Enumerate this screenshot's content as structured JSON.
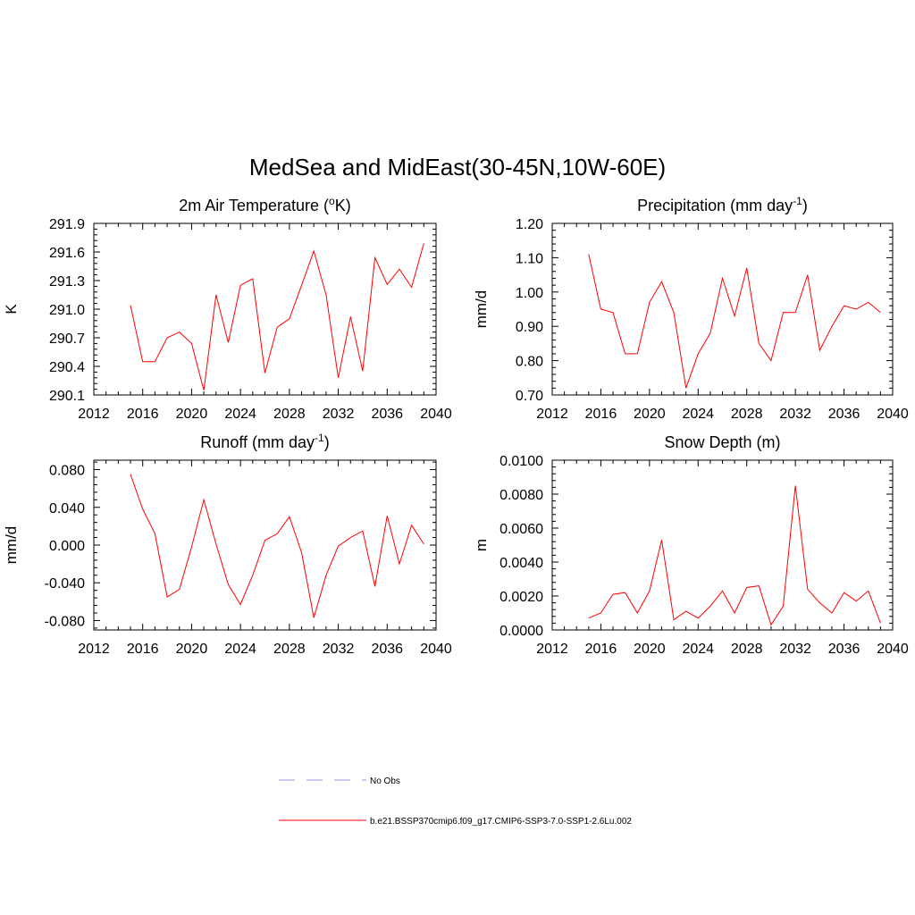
{
  "title": "MedSea and MidEast(30-45N,10W-60E)",
  "series_color": "#ff0000",
  "obs_color": "#9999dd",
  "legend": [
    {
      "label": "No Obs",
      "style": "dashed"
    },
    {
      "label": "b.e21.BSSP370cmip6.f09_g17.CMIP6-SSP3-7.0-SSP1-2.6Lu.002",
      "style": "solid"
    }
  ],
  "chart_data": [
    {
      "type": "line",
      "title": "2m Air Temperature (",
      "title_sup": "o",
      "title_tail": "K)",
      "ylabel": "K",
      "xlim": [
        2012,
        2040
      ],
      "ylim": [
        290.1,
        291.9
      ],
      "xticks": [
        2012,
        2016,
        2020,
        2024,
        2028,
        2032,
        2036,
        2040
      ],
      "yticks": [
        "290.1",
        "290.4",
        "290.7",
        "291.0",
        "291.3",
        "291.6",
        "291.9"
      ],
      "x": [
        2015,
        2016,
        2017,
        2018,
        2019,
        2020,
        2021,
        2022,
        2023,
        2024,
        2025,
        2026,
        2027,
        2028,
        2029,
        2030,
        2031,
        2032,
        2033,
        2034,
        2035,
        2036,
        2037,
        2038,
        2039
      ],
      "y": [
        291.04,
        290.45,
        290.45,
        290.7,
        290.76,
        290.64,
        290.15,
        291.15,
        290.65,
        291.25,
        291.32,
        290.33,
        290.81,
        290.9,
        291.25,
        291.61,
        291.15,
        290.28,
        290.92,
        290.35,
        291.54,
        291.26,
        291.42,
        291.23,
        291.69
      ]
    },
    {
      "type": "line",
      "title": "Precipitation (mm day",
      "title_sup": "-1",
      "title_tail": ")",
      "ylabel": "mm/d",
      "xlim": [
        2012,
        2040
      ],
      "ylim": [
        0.7,
        1.2
      ],
      "xticks": [
        2012,
        2016,
        2020,
        2024,
        2028,
        2032,
        2036,
        2040
      ],
      "yticks": [
        "0.70",
        "0.80",
        "0.90",
        "1.00",
        "1.10",
        "1.20"
      ],
      "x": [
        2015,
        2016,
        2017,
        2018,
        2019,
        2020,
        2021,
        2022,
        2023,
        2024,
        2025,
        2026,
        2027,
        2028,
        2029,
        2030,
        2031,
        2032,
        2033,
        2034,
        2035,
        2036,
        2037,
        2038,
        2039
      ],
      "y": [
        1.11,
        0.95,
        0.94,
        0.82,
        0.82,
        0.97,
        1.03,
        0.94,
        0.72,
        0.82,
        0.88,
        1.04,
        0.93,
        1.07,
        0.85,
        0.8,
        0.94,
        0.94,
        1.05,
        0.83,
        0.9,
        0.96,
        0.95,
        0.97,
        0.94
      ]
    },
    {
      "type": "line",
      "title": "Runoff (mm day",
      "title_sup": "-1",
      "title_tail": ")",
      "ylabel": "mm/d",
      "xlim": [
        2012,
        2040
      ],
      "ylim": [
        -0.09,
        0.09
      ],
      "xticks": [
        2012,
        2016,
        2020,
        2024,
        2028,
        2032,
        2036,
        2040
      ],
      "yticks": [
        "-0.080",
        "-0.040",
        "0.000",
        "0.040",
        "0.080"
      ],
      "ytick_values": [
        -0.08,
        -0.04,
        0.0,
        0.04,
        0.08
      ],
      "x": [
        2015,
        2016,
        2017,
        2018,
        2019,
        2020,
        2021,
        2022,
        2023,
        2024,
        2025,
        2026,
        2027,
        2028,
        2029,
        2030,
        2031,
        2032,
        2033,
        2034,
        2035,
        2036,
        2037,
        2038,
        2039
      ],
      "y": [
        0.075,
        0.038,
        0.012,
        -0.055,
        -0.047,
        -0.002,
        0.048,
        0.001,
        -0.042,
        -0.063,
        -0.032,
        0.005,
        0.012,
        0.03,
        -0.008,
        -0.077,
        -0.032,
        -0.001,
        0.008,
        0.015,
        -0.044,
        0.031,
        -0.02,
        0.021,
        0.001
      ]
    },
    {
      "type": "line",
      "title": "Snow Depth (m)",
      "title_sup": "",
      "title_tail": "",
      "ylabel": "m",
      "xlim": [
        2012,
        2040
      ],
      "ylim": [
        0.0,
        0.01
      ],
      "xticks": [
        2012,
        2016,
        2020,
        2024,
        2028,
        2032,
        2036,
        2040
      ],
      "yticks": [
        "0.0000",
        "0.0020",
        "0.0040",
        "0.0060",
        "0.0080",
        "0.0100"
      ],
      "x": [
        2015,
        2016,
        2017,
        2018,
        2019,
        2020,
        2021,
        2022,
        2023,
        2024,
        2025,
        2026,
        2027,
        2028,
        2029,
        2030,
        2031,
        2032,
        2033,
        2034,
        2035,
        2036,
        2037,
        2038,
        2039
      ],
      "y": [
        0.0007,
        0.001,
        0.0021,
        0.0022,
        0.001,
        0.0023,
        0.0053,
        0.0006,
        0.0011,
        0.0007,
        0.0014,
        0.0023,
        0.001,
        0.0025,
        0.0026,
        0.0003,
        0.0014,
        0.0085,
        0.0024,
        0.0016,
        0.001,
        0.0022,
        0.0017,
        0.0023,
        0.0004
      ]
    }
  ]
}
